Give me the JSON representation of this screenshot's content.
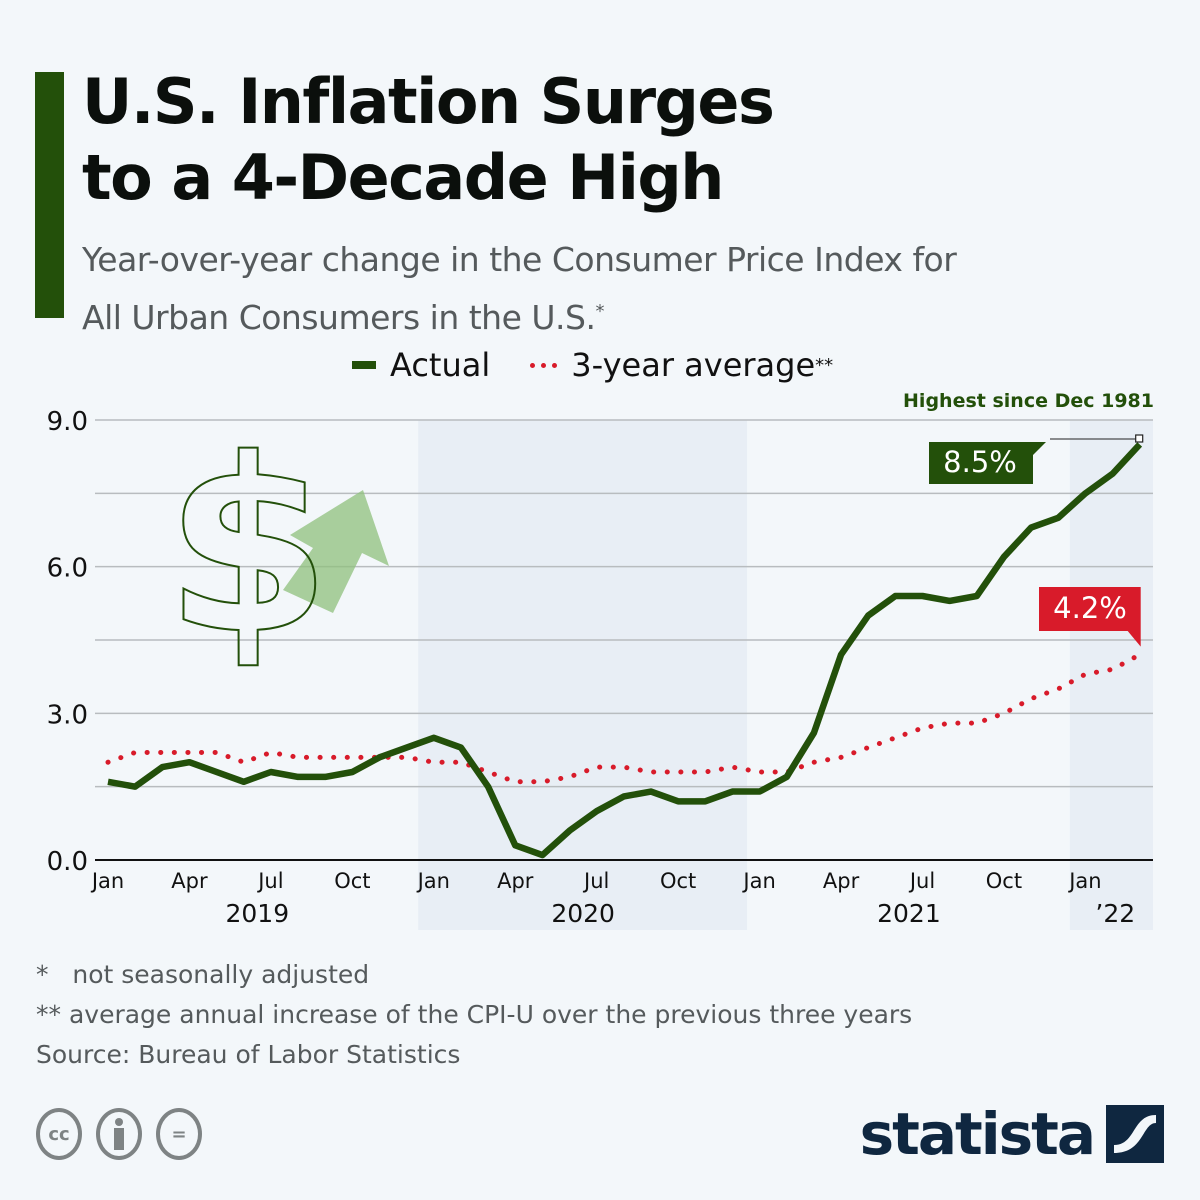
{
  "header": {
    "title_line1": "U.S. Inflation Surges",
    "title_line2": "to a 4-Decade High",
    "subtitle_line1": "Year-over-year change in the Consumer Price Index for",
    "subtitle_line2": "All Urban Consumers in the U.S.",
    "subtitle_mark": "*"
  },
  "legend": {
    "actual": "Actual",
    "average": "3-year average",
    "average_mark": "**"
  },
  "annotation": "Highest since Dec 1981",
  "colors": {
    "actual": "#23500a",
    "average": "#d81b2a",
    "band": "#e8eef5",
    "background": "#f3f7fa",
    "arrow": "#8fc07c"
  },
  "chart_data": {
    "type": "line",
    "title": "U.S. Inflation Surges to a 4-Decade High",
    "xlabel": "",
    "ylabel": "",
    "ylim": [
      0,
      9
    ],
    "yticks": [
      "0.0",
      "3.0",
      "6.0",
      "9.0"
    ],
    "y_tick_values": [
      0,
      3,
      6,
      9
    ],
    "grid_values": [
      0,
      1.5,
      3,
      4.5,
      6,
      7.5,
      9
    ],
    "grid": true,
    "legend_position": "top-center",
    "x": [
      "Jan 2019",
      "Feb 2019",
      "Mar 2019",
      "Apr 2019",
      "May 2019",
      "Jun 2019",
      "Jul 2019",
      "Aug 2019",
      "Sep 2019",
      "Oct 2019",
      "Nov 2019",
      "Dec 2019",
      "Jan 2020",
      "Feb 2020",
      "Mar 2020",
      "Apr 2020",
      "May 2020",
      "Jun 2020",
      "Jul 2020",
      "Aug 2020",
      "Sep 2020",
      "Oct 2020",
      "Nov 2020",
      "Dec 2020",
      "Jan 2021",
      "Feb 2021",
      "Mar 2021",
      "Apr 2021",
      "May 2021",
      "Jun 2021",
      "Jul 2021",
      "Aug 2021",
      "Sep 2021",
      "Oct 2021",
      "Nov 2021",
      "Dec 2021",
      "Jan 2022",
      "Feb 2022",
      "Mar 2022"
    ],
    "month_ticks": [
      {
        "label": "Jan",
        "index": 0
      },
      {
        "label": "Apr",
        "index": 3
      },
      {
        "label": "Jul",
        "index": 6
      },
      {
        "label": "Oct",
        "index": 9
      },
      {
        "label": "Jan",
        "index": 12
      },
      {
        "label": "Apr",
        "index": 15
      },
      {
        "label": "Jul",
        "index": 18
      },
      {
        "label": "Oct",
        "index": 21
      },
      {
        "label": "Jan",
        "index": 24
      },
      {
        "label": "Apr",
        "index": 27
      },
      {
        "label": "Jul",
        "index": 30
      },
      {
        "label": "Oct",
        "index": 33
      },
      {
        "label": "Jan",
        "index": 36
      }
    ],
    "year_labels": [
      {
        "label": "2019",
        "center_index": 5.5
      },
      {
        "label": "2020",
        "center_index": 17.5
      },
      {
        "label": "2021",
        "center_index": 29.5
      },
      {
        "label": "’22",
        "center_index": 37.1
      }
    ],
    "shaded_periods": [
      [
        12,
        23
      ],
      [
        36,
        38
      ]
    ],
    "series": [
      {
        "name": "Actual",
        "values": [
          1.6,
          1.5,
          1.9,
          2.0,
          1.8,
          1.6,
          1.8,
          1.7,
          1.7,
          1.8,
          2.1,
          2.3,
          2.5,
          2.3,
          1.5,
          0.3,
          0.1,
          0.6,
          1.0,
          1.3,
          1.4,
          1.2,
          1.2,
          1.4,
          1.4,
          1.7,
          2.6,
          4.2,
          5.0,
          5.4,
          5.4,
          5.3,
          5.4,
          6.2,
          6.8,
          7.0,
          7.5,
          7.9,
          8.5
        ]
      },
      {
        "name": "3-year average",
        "values": [
          2.0,
          2.2,
          2.2,
          2.2,
          2.2,
          2.0,
          2.2,
          2.1,
          2.1,
          2.1,
          2.1,
          2.1,
          2.0,
          2.0,
          1.8,
          1.6,
          1.6,
          1.7,
          1.9,
          1.9,
          1.8,
          1.8,
          1.8,
          1.9,
          1.8,
          1.8,
          2.0,
          2.1,
          2.3,
          2.5,
          2.7,
          2.8,
          2.8,
          3.0,
          3.3,
          3.5,
          3.8,
          3.9,
          4.2
        ]
      }
    ],
    "data_labels": [
      {
        "series": "Actual",
        "text": "8.5%"
      },
      {
        "series": "3-year average",
        "text": "4.2%"
      }
    ],
    "annotation": "Highest since Dec 1981"
  },
  "footnotes": {
    "note1_mark": "*",
    "note1": "not seasonally adjusted",
    "note2_mark": "**",
    "note2": "average annual increase of the CPI-U over the previous three years",
    "source": "Source: Bureau of Labor Statistics"
  },
  "license_icons": [
    "cc-icon",
    "attribution-icon",
    "no-derivatives-icon"
  ],
  "license_glyphs": {
    "cc": "cc",
    "eq": "="
  },
  "brand": "statista"
}
